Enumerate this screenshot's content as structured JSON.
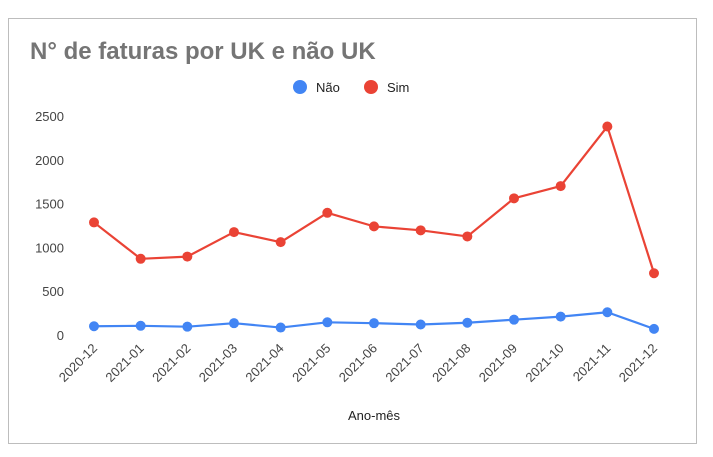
{
  "chart_data": {
    "type": "line",
    "title": "N° de faturas por UK e não UK",
    "xlabel": "Ano-mês",
    "ylabel": "",
    "ylim": [
      0,
      2500
    ],
    "yticks": [
      0,
      500,
      1000,
      1500,
      2000,
      2500
    ],
    "grid": false,
    "legend_position": "top",
    "categories": [
      "2020-12",
      "2021-01",
      "2021-02",
      "2021-03",
      "2021-04",
      "2021-05",
      "2021-06",
      "2021-07",
      "2021-08",
      "2021-09",
      "2021-10",
      "2021-11",
      "2021-12"
    ],
    "series": [
      {
        "name": "Não",
        "color": "#4285f4",
        "values": [
          100,
          105,
          95,
          135,
          85,
          145,
          135,
          120,
          140,
          175,
          210,
          260,
          70
        ]
      },
      {
        "name": "Sim",
        "color": "#ea4335",
        "values": [
          1285,
          870,
          895,
          1175,
          1060,
          1395,
          1240,
          1195,
          1125,
          1560,
          1700,
          2380,
          705
        ]
      }
    ]
  }
}
